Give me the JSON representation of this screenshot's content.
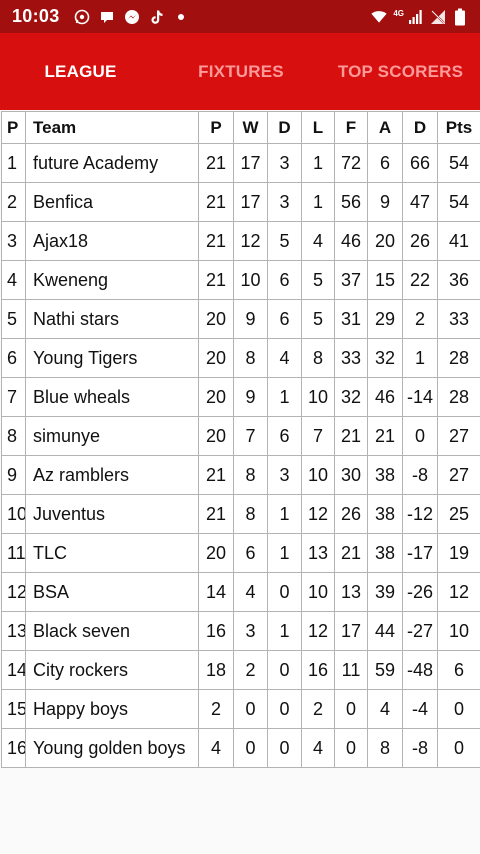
{
  "status_bar": {
    "time": "10:03",
    "network": "4G",
    "notification_icons": [
      "whatsapp-icon",
      "chat-bubble-icon",
      "messenger-icon",
      "tiktok-icon",
      "more-dot-icon"
    ]
  },
  "tabs": [
    {
      "label": "LEAGUE",
      "active": true
    },
    {
      "label": "FIXTURES",
      "active": false
    },
    {
      "label": "TOP SCORERS",
      "active": false
    }
  ],
  "table": {
    "headers": [
      "P",
      "Team",
      "P",
      "W",
      "D",
      "L",
      "F",
      "A",
      "D",
      "Pts"
    ],
    "rows": [
      [
        "1",
        "future Academy",
        "21",
        "17",
        "3",
        "1",
        "72",
        "6",
        "66",
        "54"
      ],
      [
        "2",
        "Benfica",
        "21",
        "17",
        "3",
        "1",
        "56",
        "9",
        "47",
        "54"
      ],
      [
        "3",
        "Ajax18",
        "21",
        "12",
        "5",
        "4",
        "46",
        "20",
        "26",
        "41"
      ],
      [
        "4",
        "Kweneng",
        "21",
        "10",
        "6",
        "5",
        "37",
        "15",
        "22",
        "36"
      ],
      [
        "5",
        "Nathi stars",
        "20",
        "9",
        "6",
        "5",
        "31",
        "29",
        "2",
        "33"
      ],
      [
        "6",
        "Young Tigers",
        "20",
        "8",
        "4",
        "8",
        "33",
        "32",
        "1",
        "28"
      ],
      [
        "7",
        "Blue wheals",
        "20",
        "9",
        "1",
        "10",
        "32",
        "46",
        "-14",
        "28"
      ],
      [
        "8",
        "simunye",
        "20",
        "7",
        "6",
        "7",
        "21",
        "21",
        "0",
        "27"
      ],
      [
        "9",
        "Az ramblers",
        "21",
        "8",
        "3",
        "10",
        "30",
        "38",
        "-8",
        "27"
      ],
      [
        "10",
        "Juventus",
        "21",
        "8",
        "1",
        "12",
        "26",
        "38",
        "-12",
        "25"
      ],
      [
        "11",
        "TLC",
        "20",
        "6",
        "1",
        "13",
        "21",
        "38",
        "-17",
        "19"
      ],
      [
        "12",
        "BSA",
        "14",
        "4",
        "0",
        "10",
        "13",
        "39",
        "-26",
        "12"
      ],
      [
        "13",
        "Black seven",
        "16",
        "3",
        "1",
        "12",
        "17",
        "44",
        "-27",
        "10"
      ],
      [
        "14",
        "City rockers",
        "18",
        "2",
        "0",
        "16",
        "11",
        "59",
        "-48",
        "6"
      ],
      [
        "15",
        "Happy boys",
        "2",
        "0",
        "0",
        "2",
        "0",
        "4",
        "-4",
        "0"
      ],
      [
        "16",
        "Young golden boys",
        "4",
        "0",
        "0",
        "4",
        "0",
        "8",
        "-8",
        "0"
      ]
    ]
  },
  "colors": {
    "status_bar": "#a10f0f",
    "tab_bar": "#d70f0f",
    "tab_active": "#ffffff",
    "tab_inactive": "#ff9a9a"
  }
}
